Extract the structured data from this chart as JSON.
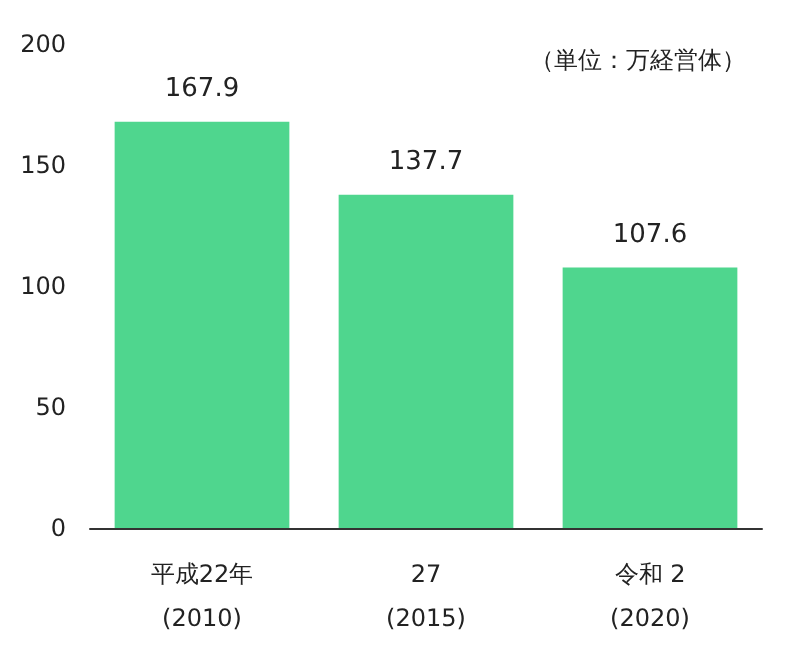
{
  "chart_data": {
    "type": "bar",
    "categories": [
      "平成22年\n(2010)",
      "27\n(2015)",
      "令和 2\n(2020)"
    ],
    "values": [
      167.9,
      137.7,
      107.6
    ],
    "color": "#4fd68e",
    "ylim": [
      0,
      200
    ],
    "yticks": [
      0,
      50,
      100,
      150,
      200
    ],
    "grid": false,
    "data_labels": true,
    "annotations": [
      "（単位：万経営体）"
    ]
  }
}
